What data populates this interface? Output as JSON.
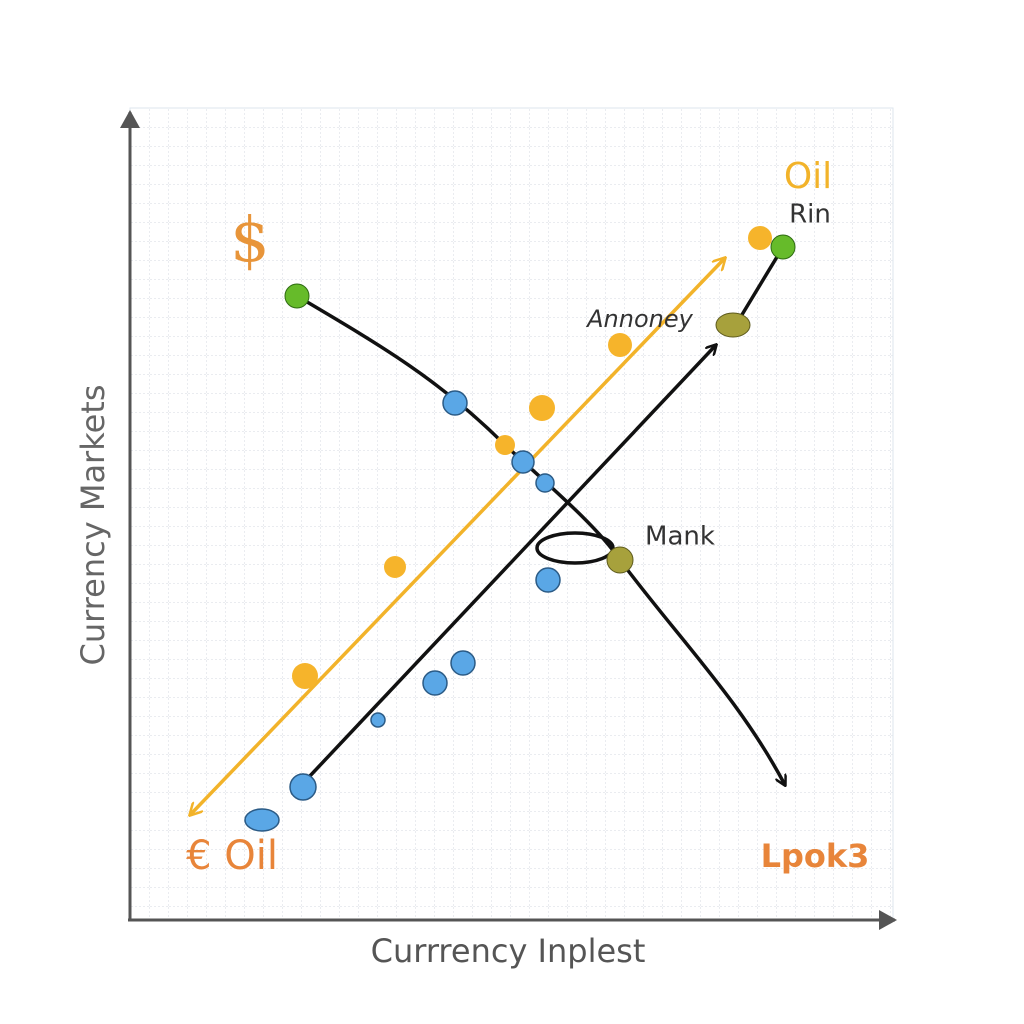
{
  "axes": {
    "x_label": "Currrency Inplest",
    "y_label": "Currency Markets"
  },
  "labels": [
    {
      "text": "$"
    },
    {
      "text": "Oil"
    },
    {
      "text": "Rin"
    },
    {
      "text": "Annoney"
    },
    {
      "text": "Mank"
    },
    {
      "text": "€ Oil"
    },
    {
      "text": "Lpok3"
    }
  ]
}
